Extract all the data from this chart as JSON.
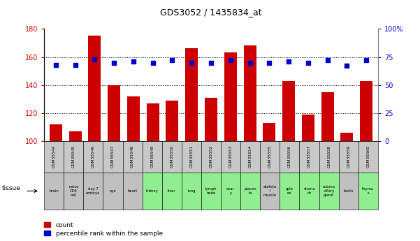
{
  "title": "GDS3052 / 1435834_at",
  "gsm_labels": [
    "GSM35544",
    "GSM35545",
    "GSM35546",
    "GSM35547",
    "GSM35548",
    "GSM35549",
    "GSM35550",
    "GSM35551",
    "GSM35552",
    "GSM35553",
    "GSM35554",
    "GSM35555",
    "GSM35556",
    "GSM35557",
    "GSM35558",
    "GSM35559",
    "GSM35560"
  ],
  "tissue_labels": [
    "brain",
    "naive\nCD4\ncell",
    "day 7\nembryo",
    "eye",
    "heart",
    "kidney",
    "liver",
    "lung",
    "lymph\nnode",
    "ovar\ny",
    "placen\nta",
    "skeleta\nl\nmuscle",
    "sple\nen",
    "stoma\nch",
    "subma\nxillary\ngland",
    "testis",
    "thymu\ns"
  ],
  "tissue_colors": [
    "#c0c0c0",
    "#c0c0c0",
    "#c0c0c0",
    "#c0c0c0",
    "#c0c0c0",
    "#90ee90",
    "#90ee90",
    "#90ee90",
    "#90ee90",
    "#90ee90",
    "#90ee90",
    "#c0c0c0",
    "#90ee90",
    "#90ee90",
    "#90ee90",
    "#c0c0c0",
    "#90ee90"
  ],
  "count_values": [
    112,
    107,
    175,
    140,
    132,
    127,
    129,
    166,
    131,
    163,
    168,
    113,
    143,
    119,
    135,
    106,
    143
  ],
  "percentile_values": [
    68,
    68,
    73,
    70,
    71,
    70,
    72,
    70,
    70,
    72,
    70,
    70,
    71,
    70,
    72,
    67,
    72
  ],
  "count_color": "#cc0000",
  "percentile_color": "#0000cc",
  "ylim_left": [
    100,
    180
  ],
  "ylim_right": [
    0,
    100
  ],
  "yticks_left": [
    100,
    120,
    140,
    160,
    180
  ],
  "yticks_right": [
    0,
    25,
    50,
    75,
    100
  ],
  "right_tick_labels": [
    "0",
    "25",
    "50",
    "75",
    "100%"
  ],
  "background_color": "#ffffff"
}
